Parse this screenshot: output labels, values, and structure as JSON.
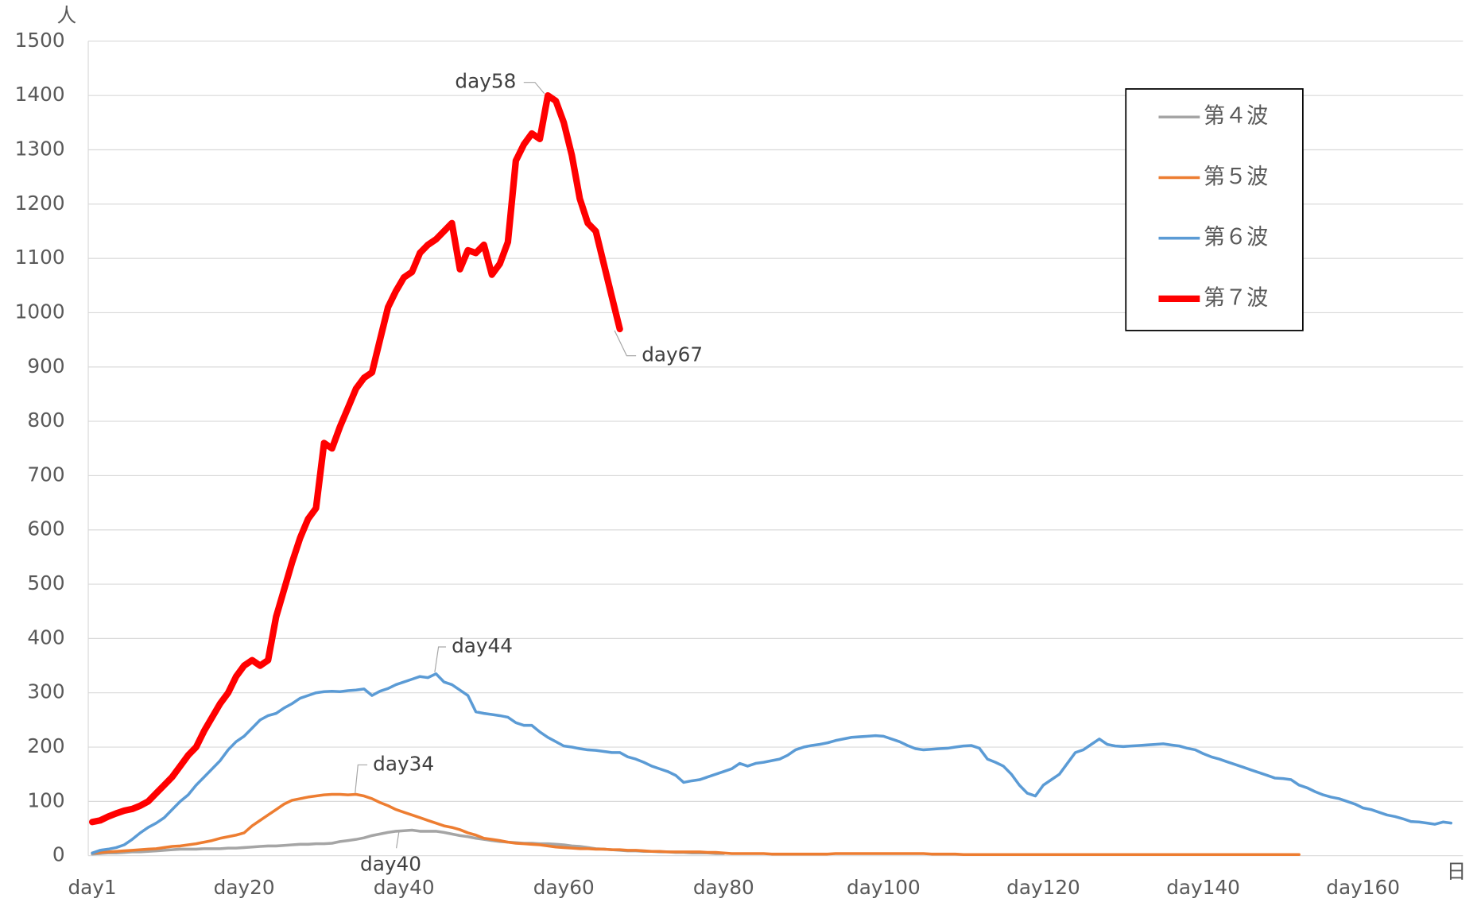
{
  "chart_data": {
    "type": "line",
    "y_unit": "人",
    "x_unit": "日",
    "categories": [
      "day1",
      null,
      null,
      null,
      null,
      null,
      null,
      null,
      null,
      null,
      null,
      null,
      null,
      null,
      null,
      null,
      null,
      null,
      null,
      "day20",
      null,
      null,
      null,
      null,
      null,
      null,
      null,
      null,
      null,
      null,
      null,
      null,
      null,
      null,
      null,
      null,
      null,
      null,
      null,
      "day40",
      null,
      null,
      null,
      null,
      null,
      null,
      null,
      null,
      null,
      null,
      null,
      null,
      null,
      null,
      null,
      null,
      null,
      null,
      null,
      "day60",
      null,
      null,
      null,
      null,
      null,
      null,
      null,
      null,
      null,
      null,
      null,
      null,
      null,
      null,
      null,
      null,
      null,
      null,
      null,
      "day80",
      null,
      null,
      null,
      null,
      null,
      null,
      null,
      null,
      null,
      null,
      null,
      null,
      null,
      null,
      null,
      null,
      null,
      null,
      null,
      "day100",
      null,
      null,
      null,
      null,
      null,
      null,
      null,
      null,
      null,
      null,
      null,
      null,
      null,
      null,
      null,
      null,
      null,
      null,
      null,
      "day120",
      null,
      null,
      null,
      null,
      null,
      null,
      null,
      null,
      null,
      null,
      null,
      null,
      null,
      null,
      null,
      null,
      null,
      null,
      null,
      "day140",
      null,
      null,
      null,
      null,
      null,
      null,
      null,
      null,
      null,
      null,
      null,
      null,
      null,
      null,
      null,
      null,
      null,
      null,
      null,
      "day160",
      null,
      null,
      null,
      null,
      null,
      null,
      null,
      null,
      null,
      null,
      null,
      null
    ],
    "ylim": [
      0,
      1500
    ],
    "yticks": [
      0,
      100,
      200,
      300,
      400,
      500,
      600,
      700,
      800,
      900,
      1000,
      1100,
      1200,
      1300,
      1400,
      1500
    ],
    "grid": true,
    "legend": "upper right",
    "series": [
      {
        "name": "第４波",
        "color": "#a5a5a5",
        "values": [
          3,
          4,
          5,
          5,
          6,
          7,
          7,
          8,
          9,
          10,
          11,
          12,
          12,
          12,
          13,
          13,
          13,
          14,
          14,
          15,
          16,
          17,
          18,
          18,
          19,
          20,
          21,
          21,
          22,
          22,
          23,
          26,
          28,
          30,
          33,
          37,
          40,
          43,
          45,
          46,
          47,
          45,
          45,
          45,
          43,
          40,
          37,
          35,
          32,
          30,
          28,
          26,
          25,
          24,
          23,
          23,
          22,
          22,
          21,
          20,
          18,
          17,
          15,
          13,
          12,
          11,
          10,
          9,
          9,
          8,
          8,
          7,
          7,
          6,
          6,
          5,
          5,
          5,
          4,
          4,
          null,
          null,
          null,
          null,
          null,
          null,
          null,
          null,
          null,
          null,
          null,
          null,
          null,
          null,
          null,
          null,
          null,
          null,
          null,
          null,
          null,
          null,
          null,
          null,
          null,
          null,
          null,
          null,
          null,
          null,
          null,
          null,
          null,
          null,
          null,
          null,
          null,
          null,
          null,
          null,
          null,
          null,
          null,
          null,
          null,
          null,
          null,
          null,
          null,
          null,
          null,
          null,
          null,
          null,
          null,
          null,
          null,
          null,
          null,
          null,
          null,
          null,
          null,
          null,
          null,
          null,
          null,
          null,
          null,
          null,
          null,
          null,
          null,
          null,
          null,
          null,
          null,
          null,
          null,
          null,
          null,
          null,
          null,
          null,
          null,
          null,
          null,
          null,
          null,
          null,
          null,
          null
        ]
      },
      {
        "name": "第５波",
        "color": "#ed7d31",
        "values": [
          5,
          6,
          7,
          8,
          9,
          10,
          11,
          12,
          13,
          15,
          17,
          18,
          20,
          22,
          25,
          28,
          32,
          35,
          38,
          42,
          55,
          65,
          75,
          85,
          95,
          102,
          105,
          108,
          110,
          112,
          113,
          113,
          112,
          113,
          110,
          105,
          98,
          92,
          85,
          80,
          75,
          70,
          65,
          60,
          55,
          52,
          48,
          42,
          38,
          32,
          30,
          28,
          25,
          23,
          22,
          21,
          20,
          18,
          16,
          15,
          14,
          13,
          13,
          12,
          12,
          11,
          11,
          10,
          10,
          9,
          8,
          8,
          7,
          7,
          7,
          7,
          7,
          6,
          6,
          5,
          4,
          4,
          4,
          4,
          4,
          3,
          3,
          3,
          3,
          3,
          3,
          3,
          3,
          4,
          4,
          4,
          4,
          4,
          4,
          4,
          4,
          4,
          4,
          4,
          4,
          3,
          3,
          3,
          3,
          2,
          2,
          2,
          2,
          2,
          2,
          2,
          2,
          2,
          2,
          2,
          2,
          2,
          2,
          2,
          2,
          2,
          2,
          2,
          2,
          2,
          2,
          2,
          2,
          2,
          2,
          2,
          2,
          2,
          2,
          2,
          2,
          2,
          2,
          2,
          2,
          2,
          2,
          2,
          2,
          2,
          2,
          2,
          null,
          null,
          null,
          null,
          null,
          null,
          null,
          null,
          null,
          null,
          null,
          null,
          null,
          null,
          null,
          null,
          null,
          null,
          null,
          null
        ]
      },
      {
        "name": "第６波",
        "color": "#5b9bd5",
        "values": [
          5,
          10,
          12,
          15,
          20,
          30,
          42,
          52,
          60,
          70,
          85,
          100,
          112,
          130,
          145,
          160,
          175,
          195,
          210,
          220,
          235,
          250,
          258,
          262,
          272,
          280,
          290,
          295,
          300,
          302,
          303,
          302,
          304,
          305,
          307,
          295,
          303,
          308,
          315,
          320,
          325,
          330,
          328,
          335,
          320,
          315,
          305,
          295,
          265,
          262,
          260,
          258,
          255,
          245,
          240,
          240,
          228,
          218,
          210,
          202,
          200,
          197,
          195,
          194,
          192,
          190,
          190,
          182,
          178,
          172,
          165,
          160,
          155,
          148,
          135,
          138,
          140,
          145,
          150,
          155,
          160,
          170,
          165,
          170,
          172,
          175,
          178,
          185,
          195,
          200,
          203,
          205,
          208,
          212,
          215,
          218,
          219,
          220,
          221,
          220,
          215,
          210,
          203,
          197,
          195,
          196,
          197,
          198,
          200,
          202,
          203,
          198,
          178,
          172,
          165,
          150,
          130,
          115,
          110,
          130,
          140,
          150,
          170,
          190,
          195,
          205,
          215,
          205,
          202,
          201,
          202,
          203,
          204,
          205,
          206,
          204,
          202,
          198,
          195,
          188,
          182,
          178,
          173,
          168,
          163,
          158,
          153,
          148,
          143,
          142,
          140,
          130,
          125,
          118,
          112,
          108,
          105,
          100,
          95,
          88,
          85,
          80,
          75,
          72,
          68,
          63,
          62,
          60,
          58,
          62,
          60,
          null
        ]
      },
      {
        "name": "第７波",
        "color": "#ff0000",
        "values": [
          62,
          65,
          72,
          78,
          83,
          86,
          92,
          100,
          115,
          130,
          145,
          165,
          185,
          200,
          230,
          255,
          280,
          300,
          330,
          350,
          360,
          350,
          360,
          440,
          490,
          540,
          585,
          620,
          640,
          760,
          750,
          790,
          825,
          860,
          880,
          890,
          950,
          1010,
          1040,
          1065,
          1075,
          1110,
          1125,
          1135,
          1150,
          1165,
          1080,
          1115,
          1110,
          1125,
          1070,
          1090,
          1130,
          1280,
          1310,
          1330,
          1320,
          1400,
          1390,
          1350,
          1290,
          1210,
          1165,
          1150,
          1090,
          1030,
          970,
          null,
          null,
          null,
          null,
          null,
          null,
          null,
          null,
          null,
          null,
          null,
          null,
          null,
          null,
          null,
          null,
          null,
          null,
          null,
          null,
          null,
          null,
          null,
          null,
          null,
          null,
          null,
          null,
          null,
          null,
          null,
          null,
          null,
          null,
          null,
          null,
          null,
          null,
          null,
          null,
          null,
          null,
          null,
          null,
          null,
          null,
          null,
          null,
          null,
          null,
          null,
          null,
          null,
          null,
          null,
          null,
          null,
          null,
          null,
          null,
          null,
          null,
          null,
          null,
          null,
          null,
          null,
          null,
          null,
          null,
          null,
          null,
          null,
          null,
          null,
          null,
          null,
          null,
          null,
          null,
          null,
          null,
          null,
          null,
          null,
          null,
          null,
          null,
          null,
          null,
          null,
          null,
          null,
          null,
          null,
          null,
          null,
          null,
          null,
          null,
          null,
          null,
          null,
          null,
          null
        ]
      }
    ],
    "annotations": [
      "day58",
      "day67",
      "day44",
      "day34",
      "day40"
    ]
  }
}
